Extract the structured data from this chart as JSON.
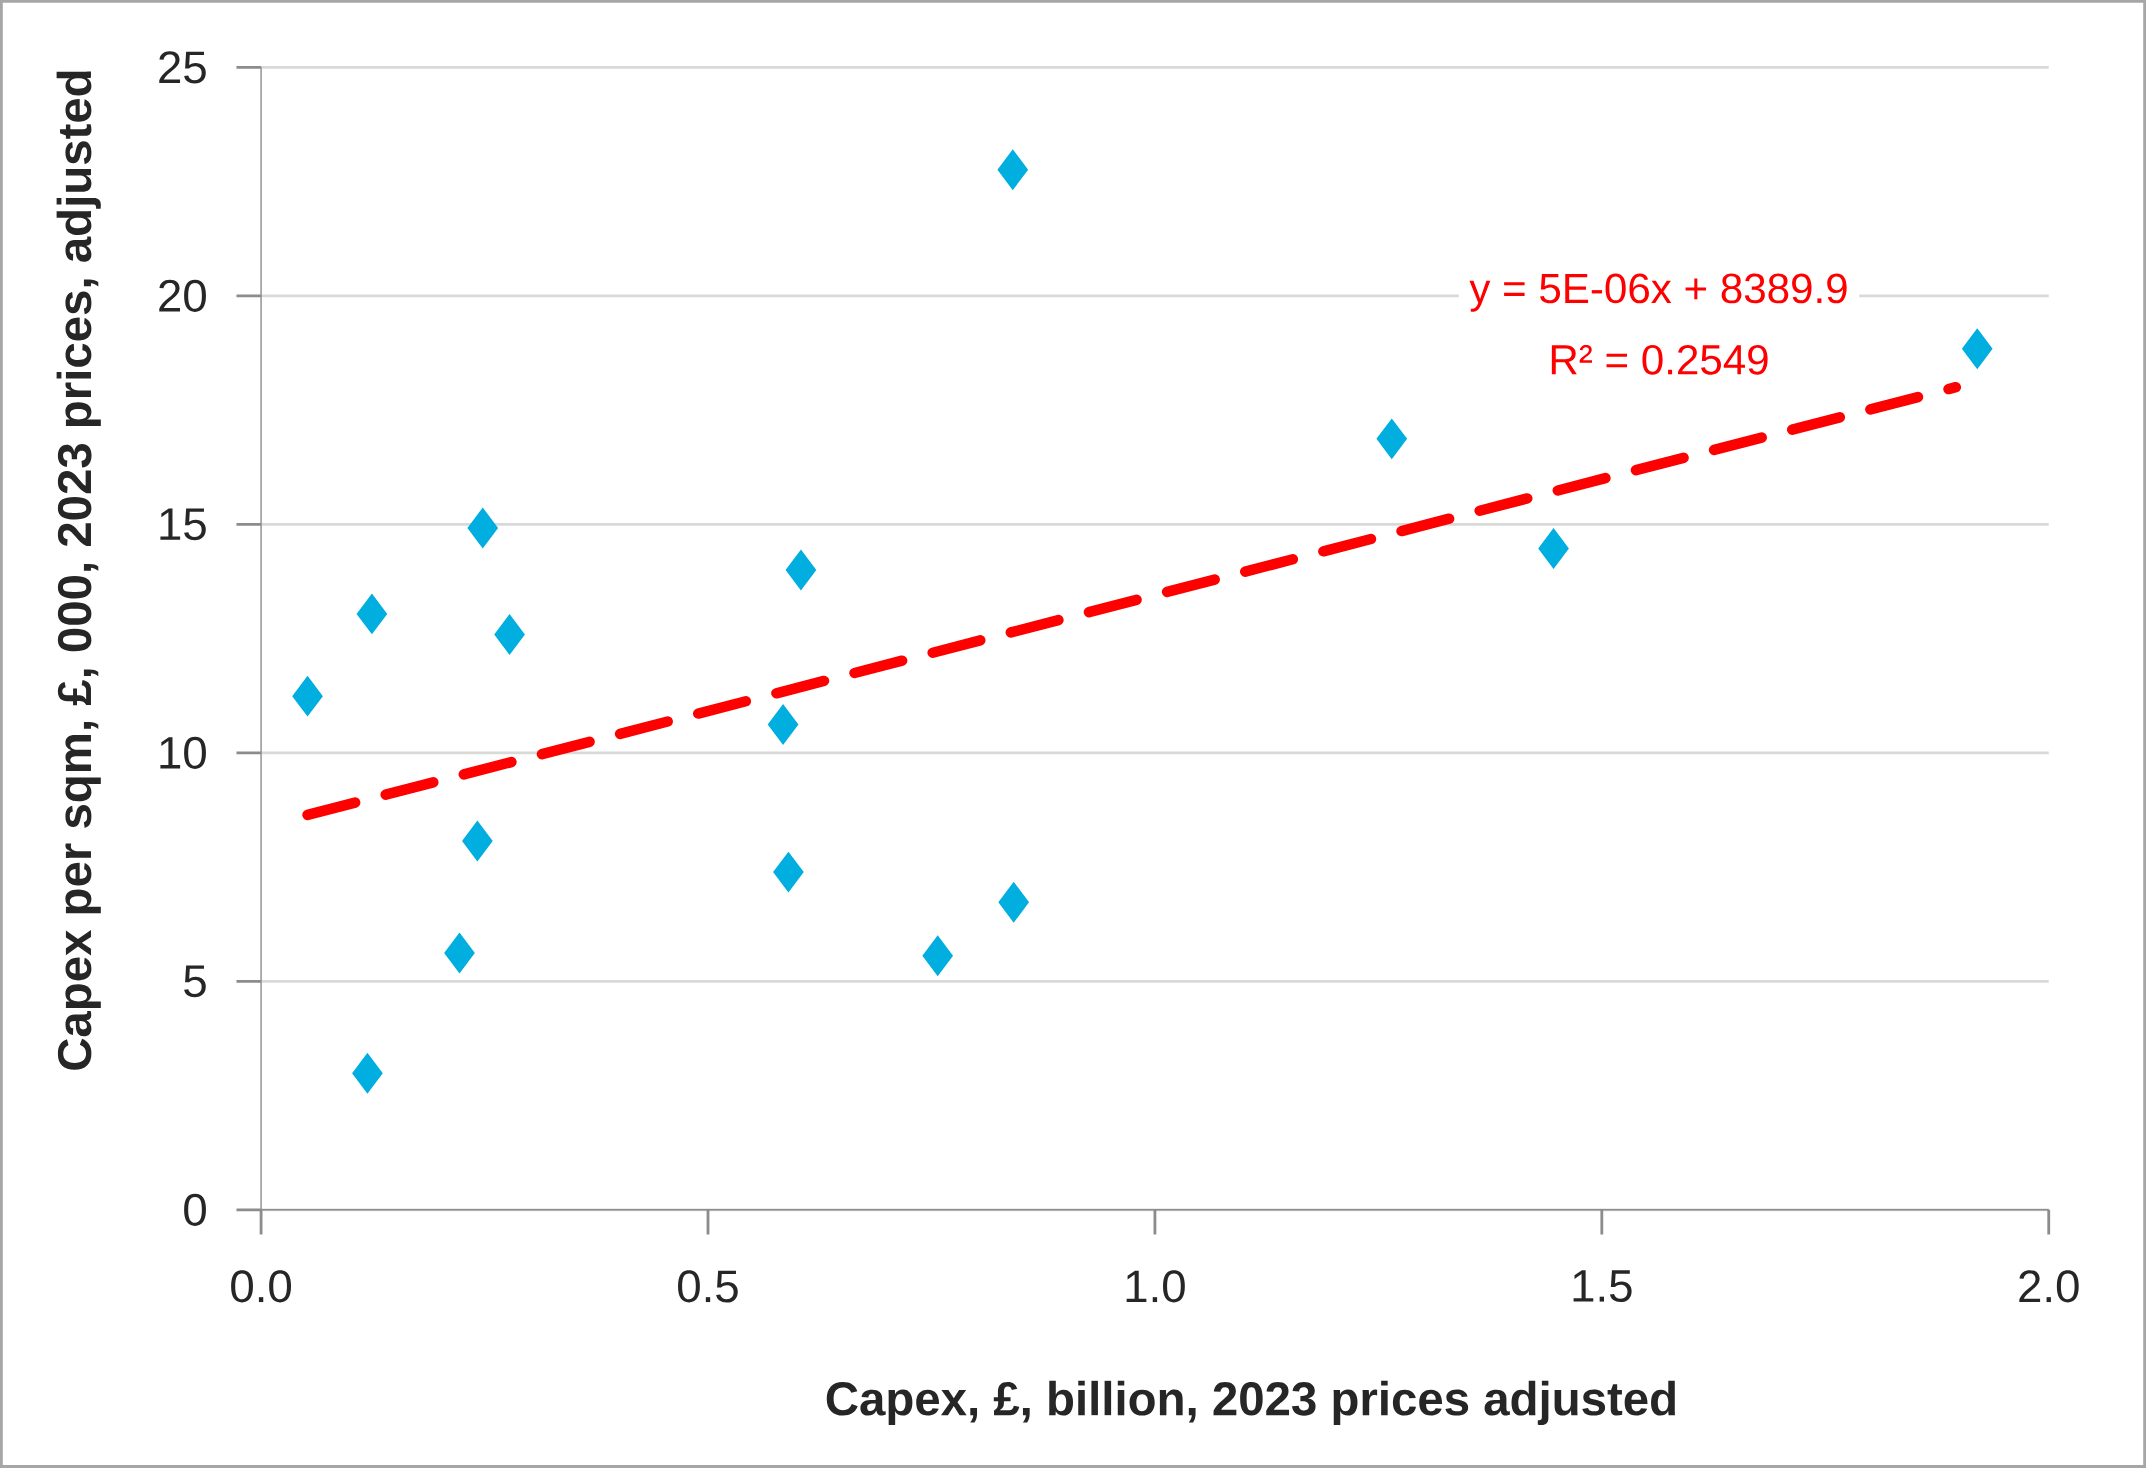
{
  "chart_data": {
    "type": "scatter",
    "xlabel": "Capex, £, billion, 2023 prices adjusted",
    "ylabel": "Capex per sqm, £, 000, 2023 prices, adjusted",
    "xlim": [
      0,
      2
    ],
    "ylim": [
      0,
      25
    ],
    "xticks": [
      {
        "value": 0,
        "label": "0.0"
      },
      {
        "value": 0.5,
        "label": "0.5"
      },
      {
        "value": 1,
        "label": "1.0"
      },
      {
        "value": 1.5,
        "label": "1.5"
      },
      {
        "value": 2,
        "label": "2.0"
      }
    ],
    "yticks": [
      0,
      5,
      10,
      15,
      20,
      25
    ],
    "grid": "y",
    "marker": "diamond",
    "annotations": [
      "y = 5E-06x + 8389.9",
      "R² = 0.2549"
    ],
    "series": [
      {
        "color": "#00aee0",
        "x": [
          0.052,
          0.124,
          0.119,
          0.222,
          0.242,
          0.248,
          0.278,
          0.584,
          0.59,
          0.604,
          0.757,
          0.841,
          0.842,
          1.265,
          1.446,
          1.92
        ],
        "values": [
          11.24,
          13.04,
          2.99,
          5.62,
          8.07,
          14.92,
          12.59,
          10.62,
          7.39,
          14.0,
          5.56,
          22.76,
          6.73,
          16.87,
          14.47,
          18.84
        ]
      },
      {
        "type": "line",
        "color": "#ff0000",
        "line_style": "dashed",
        "marker": "none",
        "x": [
          0.052,
          1.896
        ],
        "values": [
          8.64,
          18.0
        ]
      }
    ]
  }
}
